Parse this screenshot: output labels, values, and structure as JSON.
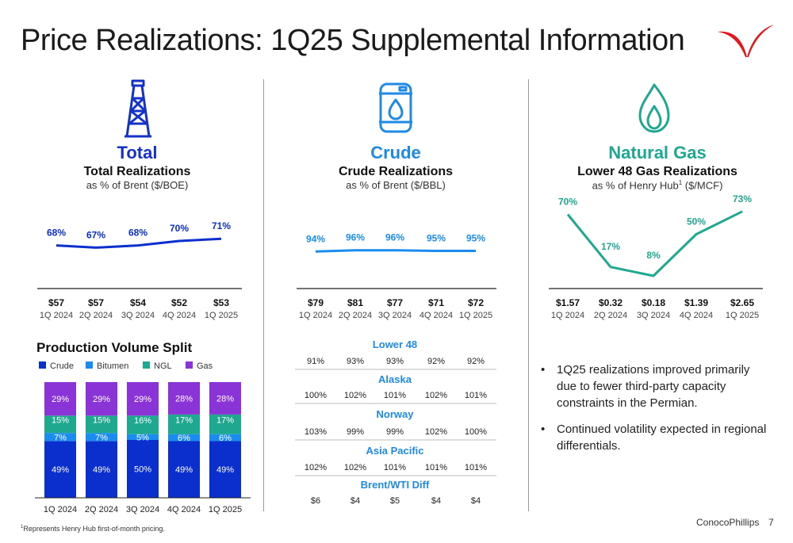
{
  "title": "Price Realizations: 1Q25 Supplemental Information",
  "columns": {
    "total": {
      "name": "Total",
      "subtitle": "Total Realizations",
      "unit": "as % of Brent ($/BOE)"
    },
    "crude": {
      "name": "Crude",
      "subtitle": "Crude Realizations",
      "unit": "as % of Brent ($/BBL)"
    },
    "gas": {
      "name": "Natural Gas",
      "subtitle": "Lower 48 Gas Realizations",
      "unit_pre": "as % of Henry Hub",
      "unit_sup": "1",
      "unit_post": " ($/MCF)"
    }
  },
  "colors": {
    "navy": "#0a2fcc",
    "blue": "#1a8cf0",
    "teal": "#1fa890",
    "purple": "#8a33d6",
    "total_title": "#1432c8",
    "crude_title": "#1f8ae6",
    "gas_title": "#1fa890",
    "brand_red": "#e3161e"
  },
  "icons": {
    "total": "oil-derrick-icon",
    "crude": "oil-barrel-icon",
    "gas": "flame-icon",
    "logo": "conocophillips-logo-icon"
  },
  "chart_data": [
    {
      "type": "line",
      "name": "total-realizations",
      "categories": [
        "$57\n1Q 2024",
        "$57\n2Q 2024",
        "$54\n3Q 2024",
        "$52\n4Q 2024",
        "$53\n1Q 2025"
      ],
      "prices": [
        "$57",
        "$57",
        "$54",
        "$52",
        "$53"
      ],
      "quarters": [
        "1Q 2024",
        "2Q 2024",
        "3Q 2024",
        "4Q 2024",
        "1Q 2025"
      ],
      "values": [
        68,
        67,
        68,
        70,
        71
      ],
      "labels": [
        "68%",
        "67%",
        "68%",
        "70%",
        "71%"
      ],
      "ylim": [
        60,
        75
      ],
      "color": "#0a2fcc"
    },
    {
      "type": "line",
      "name": "crude-realizations",
      "prices": [
        "$79",
        "$81",
        "$77",
        "$71",
        "$72"
      ],
      "quarters": [
        "1Q 2024",
        "2Q 2024",
        "3Q 2024",
        "4Q 2024",
        "1Q 2025"
      ],
      "values": [
        94,
        96,
        96,
        95,
        95
      ],
      "labels": [
        "94%",
        "96%",
        "96%",
        "95%",
        "95%"
      ],
      "ylim": [
        80,
        110
      ],
      "color": "#1a8cf0"
    },
    {
      "type": "line",
      "name": "lower48-gas-realizations",
      "prices": [
        "$1.57",
        "$0.32",
        "$0.18",
        "$1.39",
        "$2.65"
      ],
      "quarters": [
        "1Q 2024",
        "2Q 2024",
        "3Q 2024",
        "4Q 2024",
        "1Q 2025"
      ],
      "values": [
        70,
        17,
        8,
        50,
        73
      ],
      "labels": [
        "70%",
        "17%",
        "8%",
        "50%",
        "73%"
      ],
      "ylim": [
        0,
        80
      ],
      "color": "#1fa890"
    },
    {
      "type": "bar",
      "stacked": true,
      "title": "Production Volume Split",
      "categories": [
        "1Q 2024",
        "2Q 2024",
        "3Q 2024",
        "4Q 2024",
        "1Q 2025"
      ],
      "series": [
        {
          "name": "Crude",
          "values": [
            49,
            49,
            50,
            49,
            49
          ],
          "color": "#0a2fcc"
        },
        {
          "name": "Bitumen",
          "values": [
            7,
            7,
            5,
            6,
            6
          ],
          "color": "#1a8cf0"
        },
        {
          "name": "NGL",
          "values": [
            15,
            15,
            16,
            17,
            17
          ],
          "color": "#1fa890"
        },
        {
          "name": "Gas",
          "values": [
            29,
            29,
            29,
            28,
            28
          ],
          "color": "#8a33d6"
        }
      ],
      "legend": "top-left"
    },
    {
      "type": "table",
      "name": "crude-regional-realizations",
      "sections": [
        {
          "name": "Lower 48",
          "values": [
            "91%",
            "93%",
            "93%",
            "92%",
            "92%"
          ]
        },
        {
          "name": "Alaska",
          "values": [
            "100%",
            "102%",
            "101%",
            "102%",
            "101%"
          ]
        },
        {
          "name": "Norway",
          "values": [
            "103%",
            "99%",
            "99%",
            "102%",
            "100%"
          ]
        },
        {
          "name": "Asia Pacific",
          "values": [
            "102%",
            "102%",
            "101%",
            "101%",
            "101%"
          ]
        },
        {
          "name": "Brent/WTI Diff",
          "values": [
            "$6",
            "$4",
            "$5",
            "$4",
            "$4"
          ]
        }
      ]
    }
  ],
  "bullets": [
    "1Q25 realizations improved primarily due to fewer third-party capacity constraints in the Permian.",
    "Continued volatility expected in regional differentials."
  ],
  "footnote_sup": "1",
  "footnote": "Represents Henry Hub first-of-month pricing.",
  "brand": "ConocoPhillips",
  "page_number": "7"
}
